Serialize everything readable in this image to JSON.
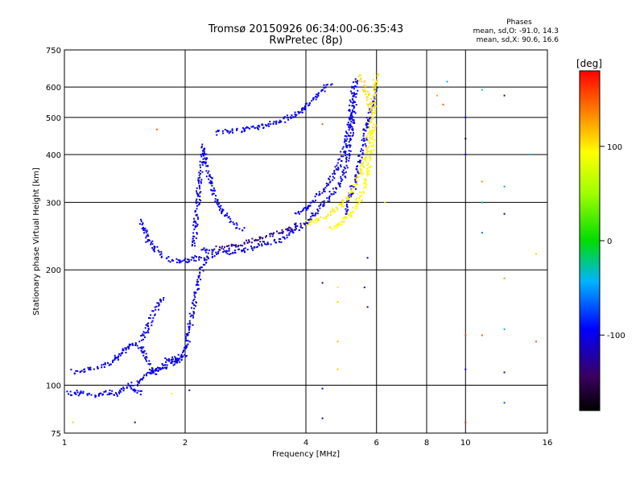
{
  "chart_data": {
    "type": "scatter",
    "title": "Tromsø 20150926 06:34:00-06:35:43",
    "subtitle": "RwPretec (8p)",
    "xlabel": "Frequency [MHz]",
    "ylabel": "Stationary phase Virtual Height [km]",
    "x_scale": "log",
    "y_scale": "log",
    "xlim": [
      1,
      16
    ],
    "ylim": [
      75,
      750
    ],
    "x_ticks": [
      1,
      2,
      4,
      6,
      8,
      10,
      16
    ],
    "x_tick_labels": [
      "1",
      "2",
      "4",
      "6",
      "8",
      "10",
      "16"
    ],
    "y_ticks": [
      75,
      100,
      200,
      300,
      400,
      500,
      600,
      750
    ],
    "y_tick_labels": [
      "75",
      "100",
      "200",
      "300",
      "400",
      "500",
      "600",
      "750"
    ],
    "grid": true,
    "stats": {
      "header": "Phases",
      "line_o": "mean, sd,O: -91.0, 14.3",
      "line_x": "mean, sd,X:  90.6, 16.6"
    },
    "colorbar": {
      "label": "[deg]",
      "min": -180,
      "max": 180,
      "ticks": [
        -100,
        0,
        100
      ],
      "tick_labels": [
        "-100",
        "0",
        "100"
      ]
    },
    "traces": [
      {
        "phase": -100,
        "points": [
          [
            1.0,
            96
          ],
          [
            1.05,
            95
          ],
          [
            1.1,
            96
          ],
          [
            1.15,
            95
          ],
          [
            1.2,
            94
          ],
          [
            1.25,
            95
          ],
          [
            1.3,
            96
          ],
          [
            1.35,
            95
          ],
          [
            1.4,
            97
          ],
          [
            1.45,
            100
          ],
          [
            1.5,
            97
          ],
          [
            1.55,
            95
          ]
        ]
      },
      {
        "phase": -100,
        "points": [
          [
            1.05,
            108
          ],
          [
            1.1,
            109
          ],
          [
            1.15,
            110
          ],
          [
            1.2,
            111
          ],
          [
            1.25,
            112
          ],
          [
            1.3,
            114
          ],
          [
            1.35,
            118
          ],
          [
            1.4,
            122
          ],
          [
            1.45,
            126
          ],
          [
            1.5,
            128
          ],
          [
            1.55,
            125
          ],
          [
            1.6,
            118
          ],
          [
            1.65,
            110
          ],
          [
            1.7,
            108
          ],
          [
            1.75,
            112
          ],
          [
            1.8,
            116
          ],
          [
            1.85,
            118
          ],
          [
            1.9,
            116
          ],
          [
            1.95,
            118
          ],
          [
            2.0,
            120
          ]
        ]
      },
      {
        "phase": -100,
        "points": [
          [
            1.5,
            100
          ],
          [
            1.55,
            103
          ],
          [
            1.6,
            106
          ],
          [
            1.65,
            108
          ],
          [
            1.7,
            110
          ],
          [
            1.8,
            112
          ],
          [
            1.9,
            115
          ],
          [
            2.0,
            125
          ],
          [
            2.05,
            140
          ],
          [
            2.1,
            160
          ],
          [
            2.15,
            185
          ],
          [
            2.2,
            200
          ],
          [
            2.25,
            215
          ]
        ]
      },
      {
        "phase": -100,
        "points": [
          [
            1.55,
            130
          ],
          [
            1.6,
            140
          ],
          [
            1.65,
            150
          ],
          [
            1.7,
            160
          ],
          [
            1.75,
            168
          ]
        ]
      },
      {
        "phase": -100,
        "points": [
          [
            1.55,
            270
          ],
          [
            1.58,
            255
          ],
          [
            1.62,
            240
          ],
          [
            1.68,
            228
          ],
          [
            1.75,
            218
          ],
          [
            1.85,
            212
          ],
          [
            1.95,
            210
          ],
          [
            2.05,
            212
          ],
          [
            2.15,
            214
          ],
          [
            2.25,
            215
          ],
          [
            2.35,
            217
          ]
        ]
      },
      {
        "phase": -100,
        "points": [
          [
            2.1,
            230
          ],
          [
            2.12,
            260
          ],
          [
            2.15,
            300
          ],
          [
            2.17,
            340
          ],
          [
            2.2,
            380
          ],
          [
            2.22,
            420
          ],
          [
            2.25,
            390
          ],
          [
            2.3,
            350
          ],
          [
            2.35,
            320
          ],
          [
            2.4,
            300
          ],
          [
            2.45,
            290
          ],
          [
            2.5,
            280
          ],
          [
            2.6,
            270
          ],
          [
            2.7,
            260
          ],
          [
            2.8,
            255
          ]
        ]
      },
      {
        "phase": -100,
        "points": [
          [
            2.2,
            225
          ],
          [
            2.4,
            222
          ],
          [
            2.6,
            222
          ],
          [
            2.8,
            225
          ],
          [
            3.0,
            230
          ],
          [
            3.2,
            235
          ],
          [
            3.4,
            238
          ],
          [
            3.6,
            245
          ],
          [
            3.8,
            255
          ],
          [
            4.0,
            265
          ],
          [
            4.2,
            280
          ],
          [
            4.4,
            295
          ],
          [
            4.6,
            310
          ],
          [
            4.8,
            330
          ],
          [
            5.0,
            360
          ],
          [
            5.1,
            400
          ],
          [
            5.2,
            460
          ],
          [
            5.25,
            520
          ],
          [
            5.3,
            580
          ],
          [
            5.35,
            630
          ]
        ]
      },
      {
        "phase": -100,
        "points": [
          [
            3.8,
            280
          ],
          [
            4.0,
            290
          ],
          [
            4.2,
            305
          ],
          [
            4.4,
            320
          ],
          [
            4.6,
            340
          ],
          [
            4.8,
            370
          ],
          [
            5.0,
            410
          ],
          [
            5.1,
            470
          ],
          [
            5.2,
            540
          ],
          [
            5.25,
            600
          ]
        ]
      },
      {
        "phase": -100,
        "points": [
          [
            2.4,
            455
          ],
          [
            2.6,
            460
          ],
          [
            2.8,
            465
          ],
          [
            3.0,
            470
          ],
          [
            3.2,
            478
          ],
          [
            3.4,
            488
          ],
          [
            3.6,
            498
          ],
          [
            3.8,
            510
          ],
          [
            4.0,
            530
          ],
          [
            4.2,
            560
          ],
          [
            4.4,
            590
          ],
          [
            4.6,
            615
          ]
        ]
      },
      {
        "phase": -100,
        "points": [
          [
            5.0,
            280
          ],
          [
            5.1,
            300
          ],
          [
            5.2,
            320
          ],
          [
            5.3,
            345
          ],
          [
            5.4,
            370
          ],
          [
            5.5,
            400
          ],
          [
            5.6,
            440
          ],
          [
            5.7,
            480
          ],
          [
            5.8,
            520
          ],
          [
            5.9,
            560
          ],
          [
            6.0,
            600
          ]
        ]
      },
      {
        "phase": -130,
        "points": [
          [
            2.4,
            228
          ],
          [
            2.7,
            232
          ],
          [
            3.0,
            240
          ],
          [
            3.3,
            248
          ],
          [
            3.6,
            255
          ],
          [
            3.8,
            262
          ]
        ]
      },
      {
        "phase": 100,
        "points": [
          [
            4.0,
            265
          ],
          [
            4.3,
            270
          ],
          [
            4.6,
            280
          ],
          [
            4.9,
            295
          ],
          [
            5.1,
            310
          ],
          [
            5.3,
            330
          ],
          [
            5.5,
            360
          ],
          [
            5.6,
            390
          ],
          [
            5.7,
            420
          ],
          [
            5.8,
            460
          ],
          [
            5.85,
            500
          ],
          [
            5.9,
            550
          ],
          [
            5.95,
            600
          ],
          [
            6.0,
            650
          ]
        ]
      },
      {
        "phase": 95,
        "points": [
          [
            4.6,
            255
          ],
          [
            4.8,
            262
          ],
          [
            5.0,
            270
          ],
          [
            5.2,
            280
          ],
          [
            5.4,
            300
          ],
          [
            5.6,
            330
          ],
          [
            5.75,
            370
          ],
          [
            5.85,
            420
          ],
          [
            5.9,
            470
          ]
        ]
      },
      {
        "phase": 105,
        "points": [
          [
            5.4,
            640
          ],
          [
            5.55,
            620
          ],
          [
            5.6,
            590
          ],
          [
            5.7,
            570
          ],
          [
            5.75,
            545
          ],
          [
            5.8,
            510
          ]
        ]
      }
    ],
    "sparse_points": [
      {
        "x": 1.7,
        "y": 465,
        "phase": 150
      },
      {
        "x": 4.4,
        "y": 480,
        "phase": 150
      },
      {
        "x": 4.4,
        "y": 185,
        "phase": -150
      },
      {
        "x": 4.4,
        "y": 98,
        "phase": -100
      },
      {
        "x": 4.4,
        "y": 82,
        "phase": -110
      },
      {
        "x": 4.8,
        "y": 180,
        "phase": 100
      },
      {
        "x": 4.8,
        "y": 165,
        "phase": 110
      },
      {
        "x": 4.8,
        "y": 130,
        "phase": 120
      },
      {
        "x": 4.8,
        "y": 110,
        "phase": 110
      },
      {
        "x": 5.6,
        "y": 180,
        "phase": -110
      },
      {
        "x": 5.7,
        "y": 160,
        "phase": -100
      },
      {
        "x": 5.7,
        "y": 215,
        "phase": -100
      },
      {
        "x": 6.3,
        "y": 300,
        "phase": 100
      },
      {
        "x": 8.5,
        "y": 570,
        "phase": 120
      },
      {
        "x": 8.8,
        "y": 540,
        "phase": 150
      },
      {
        "x": 9.0,
        "y": 620,
        "phase": -40
      },
      {
        "x": 10.0,
        "y": 500,
        "phase": -100
      },
      {
        "x": 10.0,
        "y": 400,
        "phase": -100
      },
      {
        "x": 10.0,
        "y": 440,
        "phase": -170
      },
      {
        "x": 10.0,
        "y": 135,
        "phase": 160
      },
      {
        "x": 10.0,
        "y": 80,
        "phase": 170
      },
      {
        "x": 10.0,
        "y": 110,
        "phase": -100
      },
      {
        "x": 11.0,
        "y": 340,
        "phase": 130
      },
      {
        "x": 11.0,
        "y": 300,
        "phase": -30
      },
      {
        "x": 11.0,
        "y": 250,
        "phase": -60
      },
      {
        "x": 11.0,
        "y": 135,
        "phase": 150
      },
      {
        "x": 11.0,
        "y": 590,
        "phase": -40
      },
      {
        "x": 12.5,
        "y": 570,
        "phase": -120
      },
      {
        "x": 12.5,
        "y": 330,
        "phase": -50
      },
      {
        "x": 12.5,
        "y": 280,
        "phase": -150
      },
      {
        "x": 12.5,
        "y": 190,
        "phase": 130
      },
      {
        "x": 12.5,
        "y": 140,
        "phase": -40
      },
      {
        "x": 12.5,
        "y": 108,
        "phase": -100
      },
      {
        "x": 12.5,
        "y": 90,
        "phase": -70
      },
      {
        "x": 14.5,
        "y": 400,
        "phase": -40
      },
      {
        "x": 15.0,
        "y": 220,
        "phase": 110
      },
      {
        "x": 15.0,
        "y": 130,
        "phase": 150
      },
      {
        "x": 1.05,
        "y": 80,
        "phase": 110
      },
      {
        "x": 1.5,
        "y": 80,
        "phase": -110
      },
      {
        "x": 1.85,
        "y": 95,
        "phase": 100
      },
      {
        "x": 2.05,
        "y": 97,
        "phase": -110
      }
    ]
  }
}
